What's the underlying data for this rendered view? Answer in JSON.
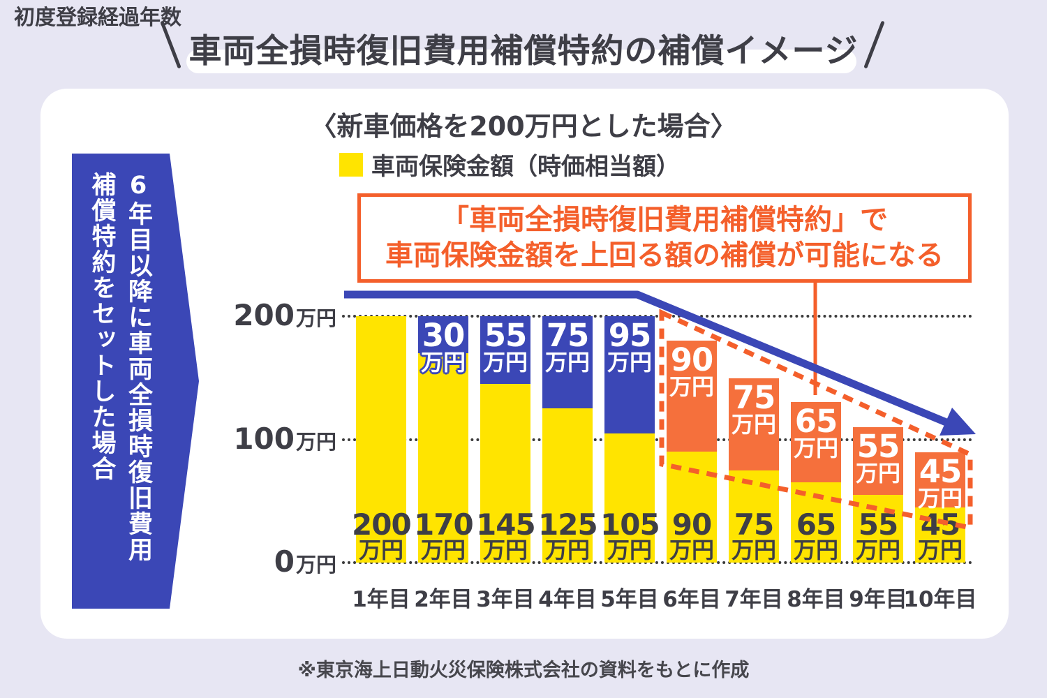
{
  "header": {
    "title": "車両全損時復旧費用補償特約の補償イメージ"
  },
  "card": {
    "subtitle": "〈新車価格を200万円とした場合〉",
    "legend_label": "車両保険金額（時価相当額）",
    "callout": {
      "line1": "「車両全損時復旧費用補償特約」で",
      "line2": "車両保険金額を上回る額の補償が可能になる"
    },
    "side_banner": {
      "column1": "6年目以降に車両全損時復旧費用",
      "column2": "補償特約をセットした場合"
    }
  },
  "footnote": "※東京海上日動火災保険株式会社の資料をもとに作成",
  "colors": {
    "background": "#e7e6f3",
    "card": "#ffffff",
    "blue": "#3b47b6",
    "yellow": "#ffe400",
    "orange_bar": "#f5703c",
    "orange_accent": "#f45f2b",
    "text_dark": "#3e3e46"
  },
  "chart_data": {
    "type": "bar",
    "stacked": true,
    "title": "〈新車価格を200万円とした場合〉",
    "unit": "万円",
    "x_axis_title": "初度登録経過年数",
    "categories": [
      "1年目",
      "2年目",
      "3年目",
      "4年目",
      "5年目",
      "6年目",
      "7年目",
      "8年目",
      "9年目",
      "10年目"
    ],
    "y_ticks": [
      200,
      100,
      0
    ],
    "ylim": [
      0,
      200
    ],
    "grid": "dotted",
    "legend_position": "top",
    "series": [
      {
        "id": "insured_value",
        "legend_label": "車両保険金額（時価相当額）",
        "color_key": "yellow",
        "values": [
          200,
          170,
          145,
          125,
          105,
          90,
          75,
          65,
          55,
          45
        ]
      },
      {
        "id": "extra_coverage_years_1_5",
        "color_key": "blue",
        "values": [
          null,
          30,
          55,
          75,
          95,
          null,
          null,
          null,
          null,
          null
        ]
      },
      {
        "id": "extra_coverage_years_6_10",
        "color_key": "orange_bar",
        "values": [
          null,
          null,
          null,
          null,
          null,
          90,
          75,
          65,
          55,
          45
        ]
      }
    ]
  }
}
